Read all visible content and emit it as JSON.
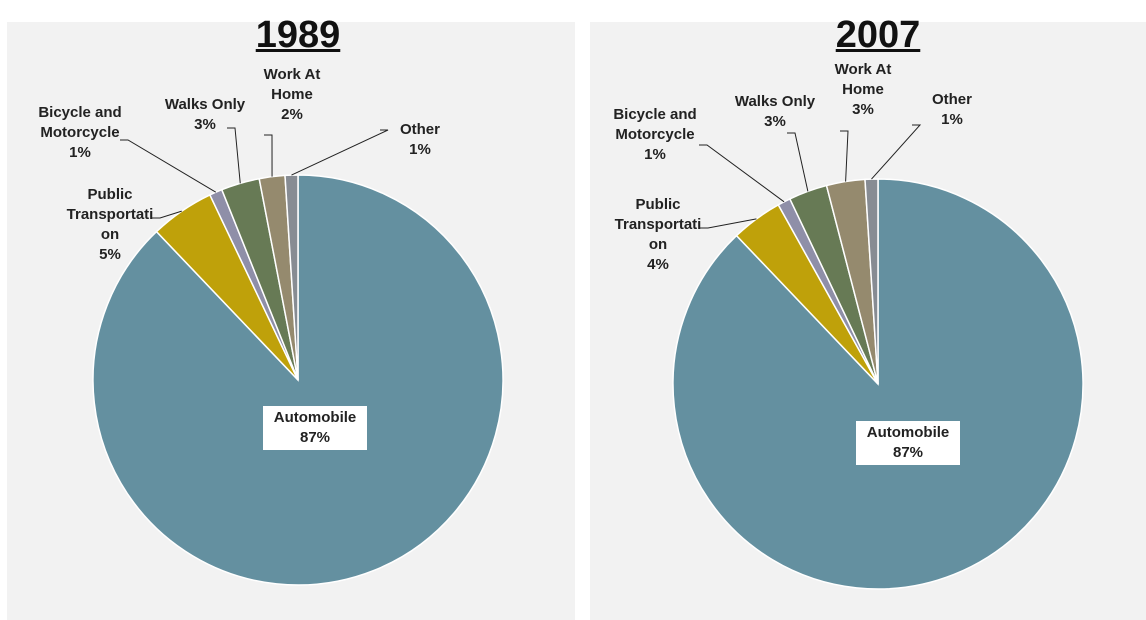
{
  "chart_data": [
    {
      "type": "pie",
      "title": "1989",
      "categories": [
        "Automobile",
        "Public Transportation",
        "Bicycle and Motorcycle",
        "Walks Only",
        "Work At Home",
        "Other"
      ],
      "values": [
        87,
        5,
        1,
        3,
        2,
        1
      ],
      "value_labels": [
        "87%",
        "5%",
        "1%",
        "3%",
        "2%",
        "1%"
      ],
      "colors": [
        "#6490a0",
        "#bfa10a",
        "#8f8fa8",
        "#677a55",
        "#958a6e",
        "#878c93"
      ]
    },
    {
      "type": "pie",
      "title": "2007",
      "categories": [
        "Automobile",
        "Public Transportation",
        "Bicycle and Motorcycle",
        "Walks Only",
        "Work At Home",
        "Other"
      ],
      "values": [
        87,
        4,
        1,
        3,
        3,
        1
      ],
      "value_labels": [
        "87%",
        "4%",
        "1%",
        "3%",
        "3%",
        "1%"
      ],
      "colors": [
        "#6490a0",
        "#bfa10a",
        "#8f8fa8",
        "#677a55",
        "#958a6e",
        "#878c93"
      ]
    }
  ]
}
